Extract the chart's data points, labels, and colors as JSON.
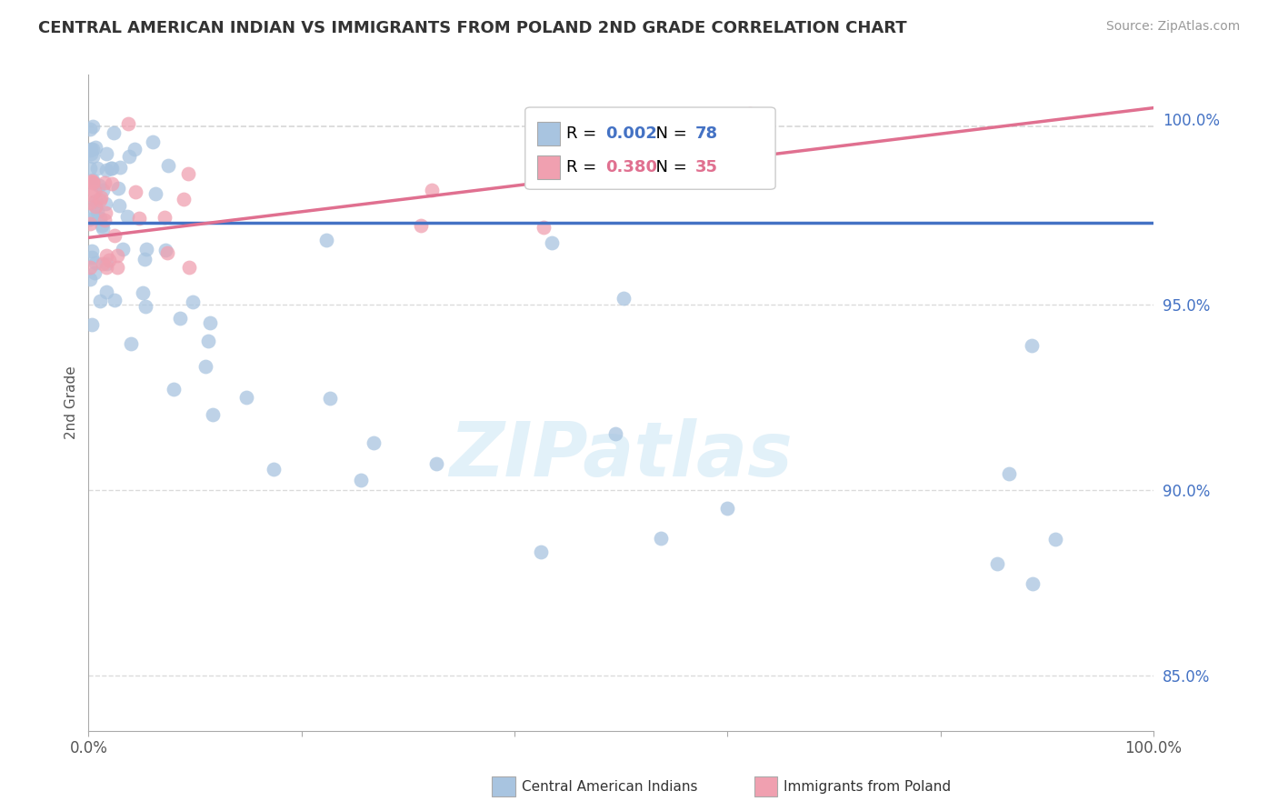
{
  "title": "CENTRAL AMERICAN INDIAN VS IMMIGRANTS FROM POLAND 2ND GRADE CORRELATION CHART",
  "source": "Source: ZipAtlas.com",
  "ylabel": "2nd Grade",
  "legend1_r": "0.002",
  "legend1_n": "78",
  "legend2_r": "0.380",
  "legend2_n": "35",
  "blue_color": "#a8c4e0",
  "pink_color": "#f0a0b0",
  "blue_line_color": "#4472c4",
  "pink_line_color": "#e07090",
  "grid_color": "#cccccc",
  "watermark_color": "#d0e8f5",
  "xlim": [
    0.0,
    1.0
  ],
  "ylim": [
    0.835,
    1.012
  ],
  "yticks": [
    0.85,
    0.9,
    0.95,
    1.0
  ],
  "ytick_labels": [
    "85.0%",
    "90.0%",
    "95.0%",
    "100.0%"
  ],
  "blue_trend_y0": 0.972,
  "blue_trend_y1": 0.972,
  "pink_trend_y0": 0.968,
  "pink_trend_y1": 1.003,
  "ref_line_y": 0.998
}
